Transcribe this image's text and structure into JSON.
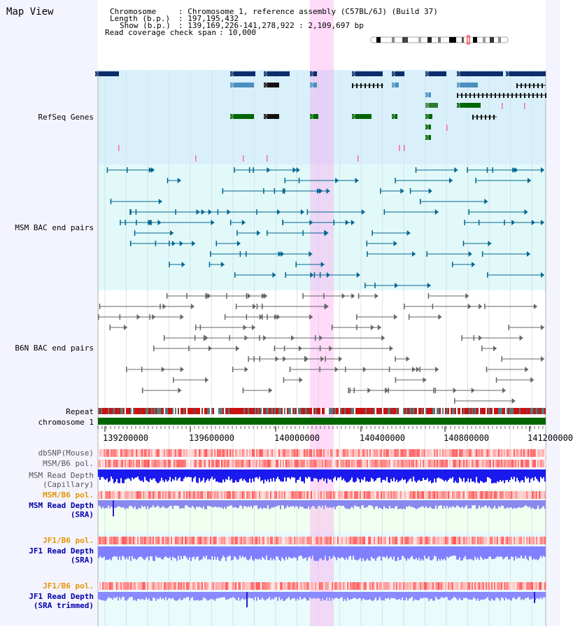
{
  "view_title": "Map View",
  "info": {
    "chromosome_key": "Chromosome",
    "chromosome_val": ": Chromosome 1, reference assembly (C57BL/6J) (Build 37)",
    "length_key": "Length (b.p.)",
    "length_val": ": 197,195,432",
    "show_key": "Show (b.p.)",
    "show_val": ": 139,169,226-141,278,922 : 2,109,697 bp",
    "coverage_key": "Read coverage check span",
    "coverage_val": ": 10,000"
  },
  "tracks": {
    "refseq": "RefSeq Genes",
    "msm_bac": "MSM BAC end pairs",
    "b6n_bac": "B6N BAC end pairs",
    "repeat": "Repeat",
    "chromosome": "chromosome 1",
    "dbsnp": "dbSNP(Mouse)",
    "msm_pol_1": "MSM/B6 pol.",
    "msm_depth_cap_1": "MSM Read Depth",
    "msm_depth_cap_2": "(Capillary)",
    "msm_pol_2": "MSM/B6 pol.",
    "msm_depth_sra_1": "MSM Read Depth",
    "msm_depth_sra_2": "(SRA)",
    "jf1_pol_1": "JF1/B6 pol.",
    "jf1_depth_sra_1": "JF1 Read Depth",
    "jf1_depth_sra_2": "(SRA)",
    "jf1_pol_2": "JF1/B6 pol.",
    "jf1_depth_trim_1": "JF1 Read Depth",
    "jf1_depth_trim_2": "(SRA trimmed)"
  },
  "ruler_ticks": [
    "139200000",
    "139600000",
    "140000000",
    "140400000",
    "140800000",
    "141200000"
  ],
  "colors": {
    "refseq_label": "#000080",
    "msm_label": "#005f87",
    "b6n_label": "#555555",
    "orange_label": "#e69500",
    "blue_label": "#0000aa",
    "highlight": "#ff99ee",
    "refseq_bg": "#d9f0fa",
    "msm_bg": "#e2f9f9",
    "chrom_bar": "#006400",
    "depth_blue": "#1a1aee",
    "depth_light": "#8888ff"
  }
}
